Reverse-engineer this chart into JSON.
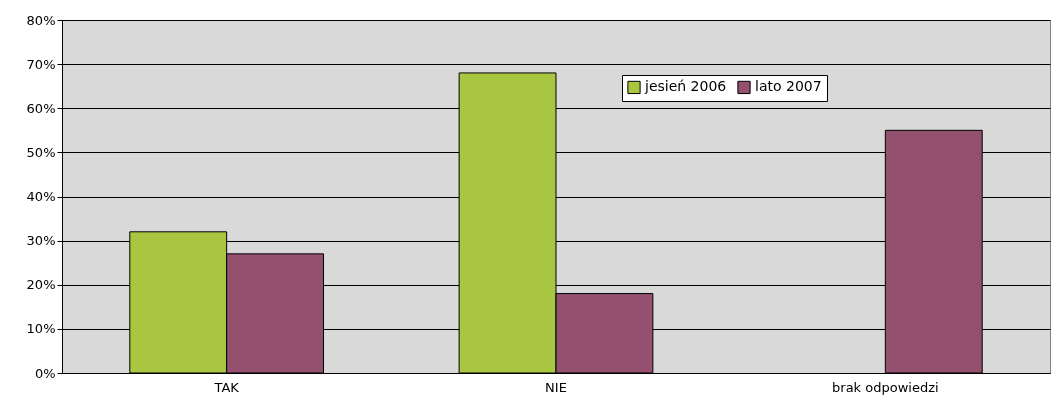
{
  "chart_data": {
    "type": "bar",
    "categories": [
      "TAK",
      "NIE",
      "brak odpowiedzi"
    ],
    "series": [
      {
        "name": "jesień 2006",
        "color": "#a8c63f",
        "values": [
          32,
          68,
          null
        ]
      },
      {
        "name": "lato 2007",
        "color": "#93506f",
        "values": [
          27,
          18,
          55
        ]
      }
    ],
    "ylim": [
      0,
      80
    ],
    "yticks": [
      {
        "value": 0,
        "label": "0%"
      },
      {
        "value": 10,
        "label": "10%"
      },
      {
        "value": 20,
        "label": "20%"
      },
      {
        "value": 30,
        "label": "30%"
      },
      {
        "value": 40,
        "label": "40%"
      },
      {
        "value": 50,
        "label": "50%"
      },
      {
        "value": 60,
        "label": "60%"
      },
      {
        "value": 70,
        "label": "70%"
      },
      {
        "value": 80,
        "label": "80%"
      }
    ],
    "grid": "y",
    "legend": "top right"
  }
}
